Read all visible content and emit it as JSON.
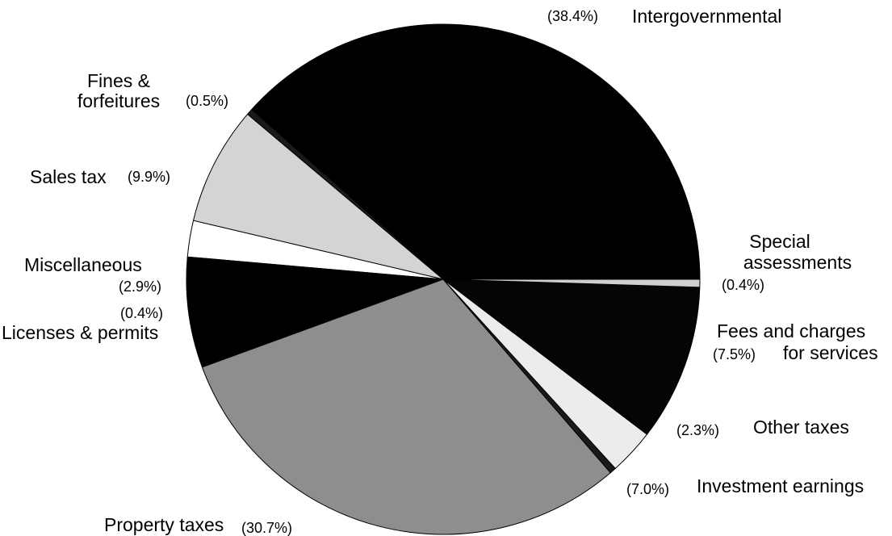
{
  "chart_data": {
    "type": "pie",
    "title": "",
    "slices": [
      {
        "label": "Intergovernmental",
        "value": 38.4,
        "pct_text": "(38.4%)",
        "color": "#000000"
      },
      {
        "label": "Special assessments",
        "label_lines": [
          "Special",
          "assessments"
        ],
        "value": 0.4,
        "pct_text": "(0.4%)",
        "color": "#1a1a1a"
      },
      {
        "label": "Fees and charges for services",
        "label_lines": [
          "Fees and charges",
          "for services"
        ],
        "value": 7.5,
        "pct_text": "(7.5%)",
        "color": "#d4d4d4"
      },
      {
        "label": "Other taxes",
        "value": 2.3,
        "pct_text": "(2.3%)",
        "color": "#ffffff"
      },
      {
        "label": "Investment earnings",
        "value": 7.0,
        "pct_text": "(7.0%)",
        "color": "#000000"
      },
      {
        "label": "Property taxes",
        "value": 30.7,
        "pct_text": "(30.7%)",
        "color": "#8e8e8e"
      },
      {
        "label": "Licenses & permits",
        "value": 0.4,
        "pct_text": "(0.4%)",
        "color": "#1a1a1a"
      },
      {
        "label": "Miscellaneous",
        "value": 2.9,
        "pct_text": "(2.9%)",
        "color": "#ececec"
      },
      {
        "label": "Sales tax",
        "value": 9.9,
        "pct_text": "(9.9%)",
        "color": "#050505"
      },
      {
        "label": "Fines & forfeitures",
        "label_lines": [
          "Fines &",
          "forfeitures"
        ],
        "value": 0.5,
        "pct_text": "(0.5%)",
        "color": "#cfcfcf"
      }
    ]
  }
}
